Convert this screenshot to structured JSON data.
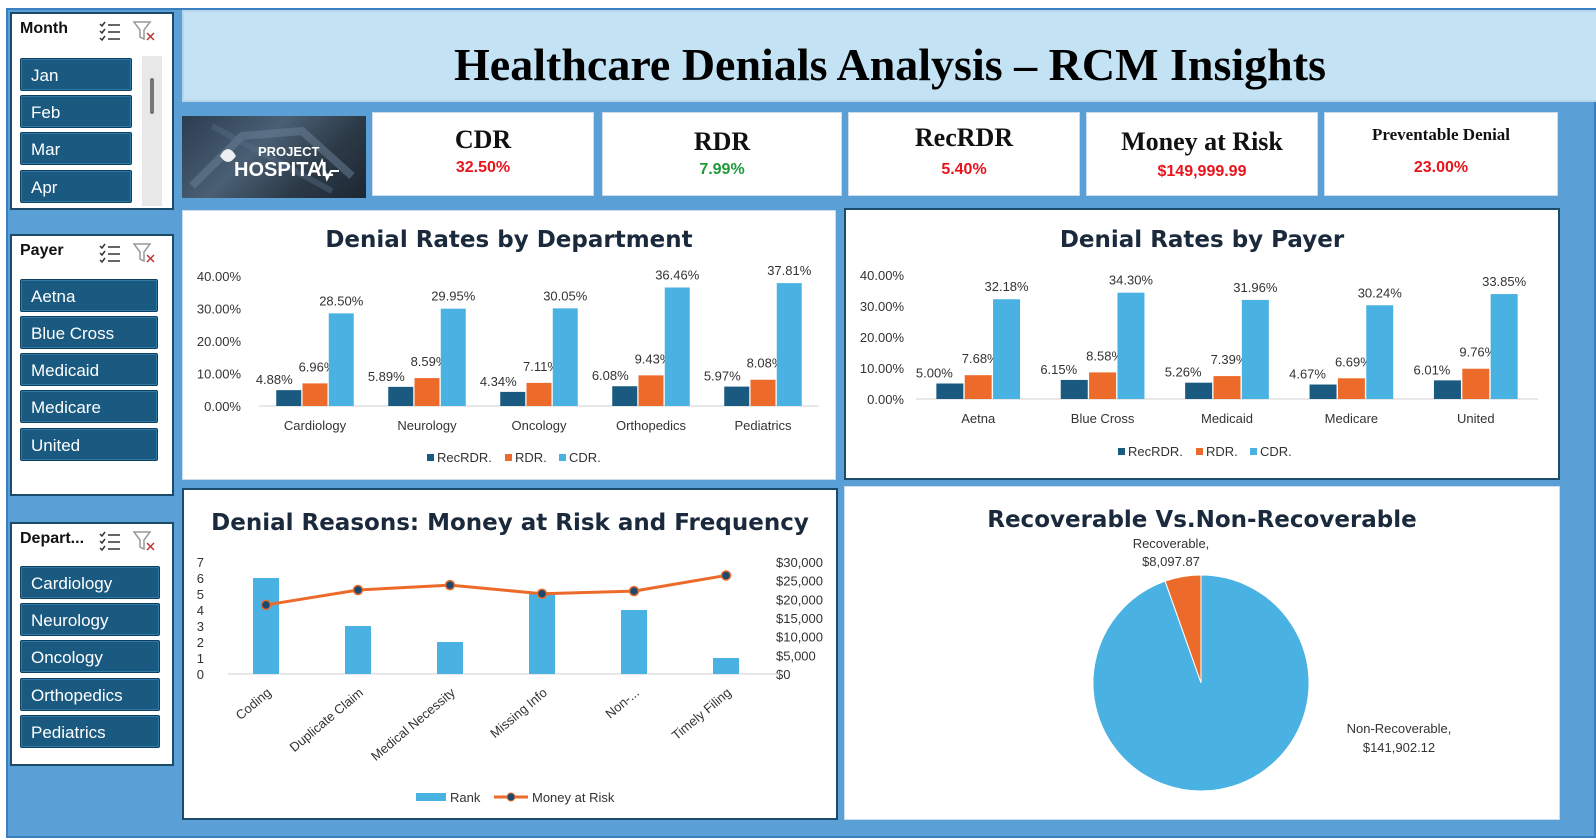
{
  "header": {
    "title": "Healthcare Denials Analysis – RCM Insights"
  },
  "logo": {
    "line1": "PROJECT",
    "line2": "HOSPITAL"
  },
  "kpis": [
    {
      "label": "CDR",
      "value": "32.50%",
      "color": "#e8141b"
    },
    {
      "label": "RDR",
      "value": "7.99%",
      "color": "#1e9a3a"
    },
    {
      "label": "RecRDR",
      "value": "5.40%",
      "color": "#e8141b"
    },
    {
      "label": "Money at Risk",
      "value": "$149,999.99",
      "color": "#e8141b"
    },
    {
      "label": "Preventable Denial",
      "value": "23.00%",
      "color": "#e8141b"
    }
  ],
  "slicers": {
    "month": {
      "title": "Month",
      "items": [
        "Jan",
        "Feb",
        "Mar",
        "Apr"
      ]
    },
    "payer": {
      "title": "Payer",
      "items": [
        "Aetna",
        "Blue Cross",
        "Medicaid",
        "Medicare",
        "United"
      ]
    },
    "department": {
      "title": "Depart...",
      "items": [
        "Cardiology",
        "Neurology",
        "Oncology",
        "Orthopedics",
        "Pediatrics"
      ]
    }
  },
  "colors": {
    "recrdr": "#1a5a80",
    "rdr": "#ed6b2a",
    "cdr": "#4ab1e3"
  },
  "chart_data": [
    {
      "type": "bar",
      "title": "Denial Rates by Department",
      "categories": [
        "Cardiology",
        "Neurology",
        "Oncology",
        "Orthopedics",
        "Pediatrics"
      ],
      "series": [
        {
          "name": "RecRDR.",
          "values": [
            4.88,
            5.89,
            4.34,
            6.08,
            5.97
          ]
        },
        {
          "name": "RDR.",
          "values": [
            6.96,
            8.59,
            7.11,
            9.43,
            8.08
          ]
        },
        {
          "name": "CDR.",
          "values": [
            28.5,
            29.95,
            30.05,
            36.46,
            37.81
          ]
        }
      ],
      "ylim": [
        0,
        40
      ],
      "yticks": [
        "0.00%",
        "10.00%",
        "20.00%",
        "30.00%",
        "40.00%"
      ],
      "legend": "bottom"
    },
    {
      "type": "bar",
      "title": "Denial Rates by Payer",
      "categories": [
        "Aetna",
        "Blue Cross",
        "Medicaid",
        "Medicare",
        "United"
      ],
      "series": [
        {
          "name": "RecRDR.",
          "values": [
            5.0,
            6.15,
            5.26,
            4.67,
            6.01
          ]
        },
        {
          "name": "RDR.",
          "values": [
            7.68,
            8.58,
            7.39,
            6.69,
            9.76
          ]
        },
        {
          "name": "CDR.",
          "values": [
            32.18,
            34.3,
            31.96,
            30.24,
            33.85
          ]
        }
      ],
      "ylim": [
        0,
        40
      ],
      "yticks": [
        "0.00%",
        "10.00%",
        "20.00%",
        "30.00%",
        "40.00%"
      ],
      "legend": "bottom"
    },
    {
      "type": "bar",
      "title": "Denial Reasons: Money at Risk and Frequency",
      "categories": [
        "Coding",
        "Duplicate Claim",
        "Medical Necessity",
        "Missing Info",
        "Non-...",
        "Timely Filing"
      ],
      "series": [
        {
          "name": "Rank",
          "type": "bar",
          "axis": "left",
          "values": [
            6,
            3,
            2,
            5,
            4,
            1
          ]
        },
        {
          "name": "Money at Risk",
          "type": "line",
          "axis": "right",
          "values": [
            18500,
            22500,
            23800,
            21500,
            22200,
            26400
          ]
        }
      ],
      "ylim": [
        0,
        7
      ],
      "yticks_left": [
        "0",
        "1",
        "2",
        "3",
        "4",
        "5",
        "6",
        "7"
      ],
      "y2lim": [
        0,
        30000
      ],
      "yticks_right": [
        "$0",
        "$5,000",
        "$10,000",
        "$15,000",
        "$20,000",
        "$25,000",
        "$30,000"
      ],
      "legend": "bottom"
    },
    {
      "type": "pie",
      "title": "Recoverable Vs.Non-Recoverable",
      "slices": [
        {
          "label": "Recoverable,",
          "value_label": "$8,097.87",
          "value": 8097.87,
          "color": "#ed6b2a"
        },
        {
          "label": "Non-Recoverable,",
          "value_label": "$141,902.12",
          "value": 141902.12,
          "color": "#4ab1e3"
        }
      ]
    }
  ]
}
